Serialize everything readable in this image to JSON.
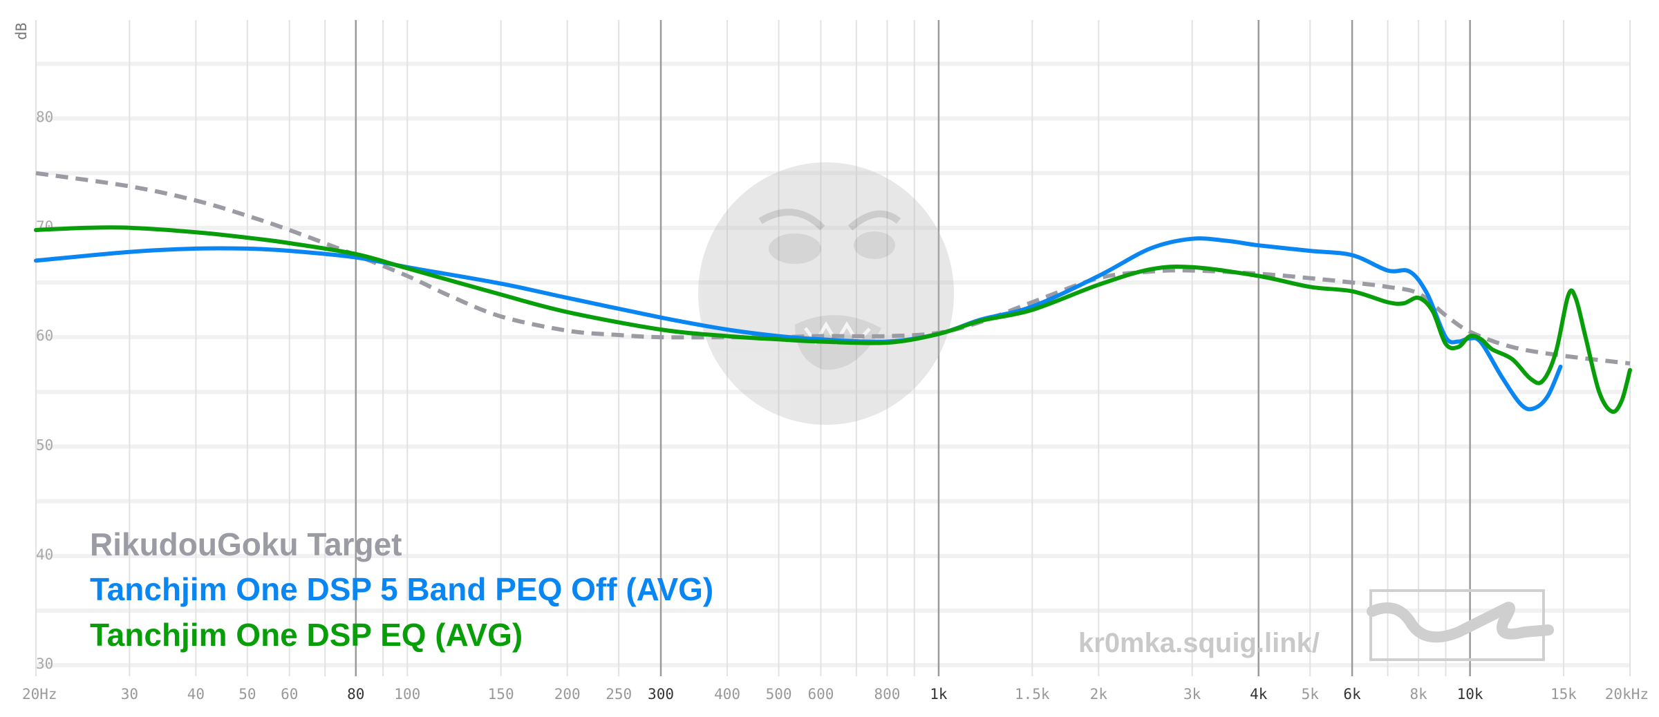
{
  "chart_data": {
    "type": "line",
    "y_unit_label": "dB",
    "x_scale": "log",
    "xlim": [
      20,
      20000
    ],
    "ylim": [
      29,
      89
    ],
    "y_gridlines": [
      30,
      35,
      40,
      45,
      50,
      55,
      60,
      65,
      70,
      75,
      80,
      85
    ],
    "y_tick_labels": [
      {
        "value": 80,
        "label": "80"
      },
      {
        "value": 70,
        "label": "70"
      },
      {
        "value": 60,
        "label": "60"
      },
      {
        "value": 50,
        "label": "50"
      },
      {
        "value": 40,
        "label": "40"
      },
      {
        "value": 30,
        "label": "30"
      }
    ],
    "x_tick_labels": [
      {
        "value": 20,
        "label": "20Hz",
        "strong": false
      },
      {
        "value": 30,
        "label": "30",
        "strong": false
      },
      {
        "value": 40,
        "label": "40",
        "strong": false
      },
      {
        "value": 50,
        "label": "50",
        "strong": false
      },
      {
        "value": 60,
        "label": "60",
        "strong": false
      },
      {
        "value": 80,
        "label": "80",
        "strong": true
      },
      {
        "value": 100,
        "label": "100",
        "strong": false
      },
      {
        "value": 150,
        "label": "150",
        "strong": false
      },
      {
        "value": 200,
        "label": "200",
        "strong": false
      },
      {
        "value": 250,
        "label": "250",
        "strong": false
      },
      {
        "value": 300,
        "label": "300",
        "strong": true
      },
      {
        "value": 400,
        "label": "400",
        "strong": false
      },
      {
        "value": 500,
        "label": "500",
        "strong": false
      },
      {
        "value": 600,
        "label": "600",
        "strong": false
      },
      {
        "value": 800,
        "label": "800",
        "strong": false
      },
      {
        "value": 1000,
        "label": "1k",
        "strong": true
      },
      {
        "value": 1500,
        "label": "1.5k",
        "strong": false
      },
      {
        "value": 2000,
        "label": "2k",
        "strong": false
      },
      {
        "value": 3000,
        "label": "3k",
        "strong": false
      },
      {
        "value": 4000,
        "label": "4k",
        "strong": true
      },
      {
        "value": 5000,
        "label": "5k",
        "strong": false
      },
      {
        "value": 6000,
        "label": "6k",
        "strong": true
      },
      {
        "value": 8000,
        "label": "8k",
        "strong": false
      },
      {
        "value": 10000,
        "label": "10k",
        "strong": true
      },
      {
        "value": 15000,
        "label": "15k",
        "strong": false
      },
      {
        "value": 20000,
        "label": "20kHz",
        "strong": false
      }
    ],
    "x_minor_gridlines": [
      20,
      30,
      40,
      50,
      60,
      70,
      90,
      100,
      150,
      200,
      250,
      400,
      500,
      600,
      700,
      800,
      900,
      1500,
      2000,
      3000,
      5000,
      7000,
      8000,
      9000,
      15000,
      20000
    ],
    "x_major_gridlines": [
      80,
      300,
      1000,
      4000,
      6000,
      10000
    ],
    "series": [
      {
        "name": "RikudouGoku Target",
        "color": "#9a9ba3",
        "dashed": true,
        "points": [
          [
            20,
            75.0
          ],
          [
            30,
            73.8
          ],
          [
            40,
            72.5
          ],
          [
            50,
            71.1
          ],
          [
            60,
            69.8
          ],
          [
            80,
            67.5
          ],
          [
            100,
            65.6
          ],
          [
            120,
            63.8
          ],
          [
            150,
            61.9
          ],
          [
            200,
            60.6
          ],
          [
            250,
            60.2
          ],
          [
            300,
            60.0
          ],
          [
            400,
            60.0
          ],
          [
            500,
            60.0
          ],
          [
            600,
            60.1
          ],
          [
            800,
            60.1
          ],
          [
            1000,
            60.4
          ],
          [
            1200,
            61.4
          ],
          [
            1500,
            63.2
          ],
          [
            2000,
            65.4
          ],
          [
            2500,
            66.0
          ],
          [
            3000,
            66.1
          ],
          [
            4000,
            65.8
          ],
          [
            5000,
            65.4
          ],
          [
            6000,
            65.0
          ],
          [
            7000,
            64.6
          ],
          [
            8000,
            64.0
          ],
          [
            9000,
            62.0
          ],
          [
            10000,
            60.5
          ],
          [
            12000,
            59.1
          ],
          [
            15000,
            58.3
          ],
          [
            20000,
            57.6
          ]
        ]
      },
      {
        "name": "Tanchjim One DSP 5 Band PEQ Off (AVG)",
        "color": "#0a86f2",
        "dashed": false,
        "points": [
          [
            20,
            67.0
          ],
          [
            30,
            67.8
          ],
          [
            40,
            68.1
          ],
          [
            50,
            68.1
          ],
          [
            60,
            67.9
          ],
          [
            80,
            67.3
          ],
          [
            100,
            66.4
          ],
          [
            150,
            64.9
          ],
          [
            200,
            63.6
          ],
          [
            300,
            61.8
          ],
          [
            400,
            60.7
          ],
          [
            500,
            60.1
          ],
          [
            600,
            59.8
          ],
          [
            800,
            59.6
          ],
          [
            1000,
            60.3
          ],
          [
            1200,
            61.6
          ],
          [
            1500,
            62.8
          ],
          [
            2000,
            65.6
          ],
          [
            2500,
            68.1
          ],
          [
            3000,
            69.0
          ],
          [
            3500,
            68.8
          ],
          [
            4000,
            68.4
          ],
          [
            5000,
            67.9
          ],
          [
            6000,
            67.5
          ],
          [
            7000,
            66.1
          ],
          [
            7700,
            66.0
          ],
          [
            8300,
            64.0
          ],
          [
            9000,
            60.0
          ],
          [
            9500,
            59.6
          ],
          [
            10000,
            59.9
          ],
          [
            10500,
            59.5
          ],
          [
            11500,
            56.3
          ],
          [
            12500,
            53.8
          ],
          [
            13200,
            53.5
          ],
          [
            14000,
            54.6
          ],
          [
            14800,
            57.3
          ]
        ]
      },
      {
        "name": "Tanchjim One DSP EQ (AVG)",
        "color": "#089e09",
        "dashed": false,
        "points": [
          [
            20,
            69.8
          ],
          [
            25,
            70.0
          ],
          [
            30,
            70.0
          ],
          [
            40,
            69.6
          ],
          [
            50,
            69.1
          ],
          [
            60,
            68.6
          ],
          [
            80,
            67.6
          ],
          [
            100,
            66.3
          ],
          [
            150,
            63.9
          ],
          [
            200,
            62.3
          ],
          [
            300,
            60.7
          ],
          [
            400,
            60.1
          ],
          [
            500,
            59.8
          ],
          [
            600,
            59.6
          ],
          [
            800,
            59.5
          ],
          [
            1000,
            60.3
          ],
          [
            1200,
            61.5
          ],
          [
            1500,
            62.5
          ],
          [
            2000,
            64.8
          ],
          [
            2500,
            66.2
          ],
          [
            3000,
            66.4
          ],
          [
            4000,
            65.6
          ],
          [
            5000,
            64.6
          ],
          [
            6000,
            64.2
          ],
          [
            7000,
            63.2
          ],
          [
            7500,
            63.1
          ],
          [
            8000,
            63.6
          ],
          [
            8500,
            62.4
          ],
          [
            9000,
            59.4
          ],
          [
            9500,
            59.1
          ],
          [
            10000,
            60.1
          ],
          [
            10500,
            59.8
          ],
          [
            11000,
            58.9
          ],
          [
            12000,
            58.0
          ],
          [
            13000,
            56.2
          ],
          [
            13700,
            56.0
          ],
          [
            14500,
            58.6
          ],
          [
            15300,
            63.8
          ],
          [
            15800,
            63.6
          ],
          [
            16500,
            60.0
          ],
          [
            17500,
            55.0
          ],
          [
            18500,
            53.2
          ],
          [
            19300,
            54.2
          ],
          [
            20000,
            57.0
          ]
        ]
      }
    ],
    "legend_position": "bottom-left",
    "watermark": "kr0mka.squig.link/",
    "grid": true
  }
}
